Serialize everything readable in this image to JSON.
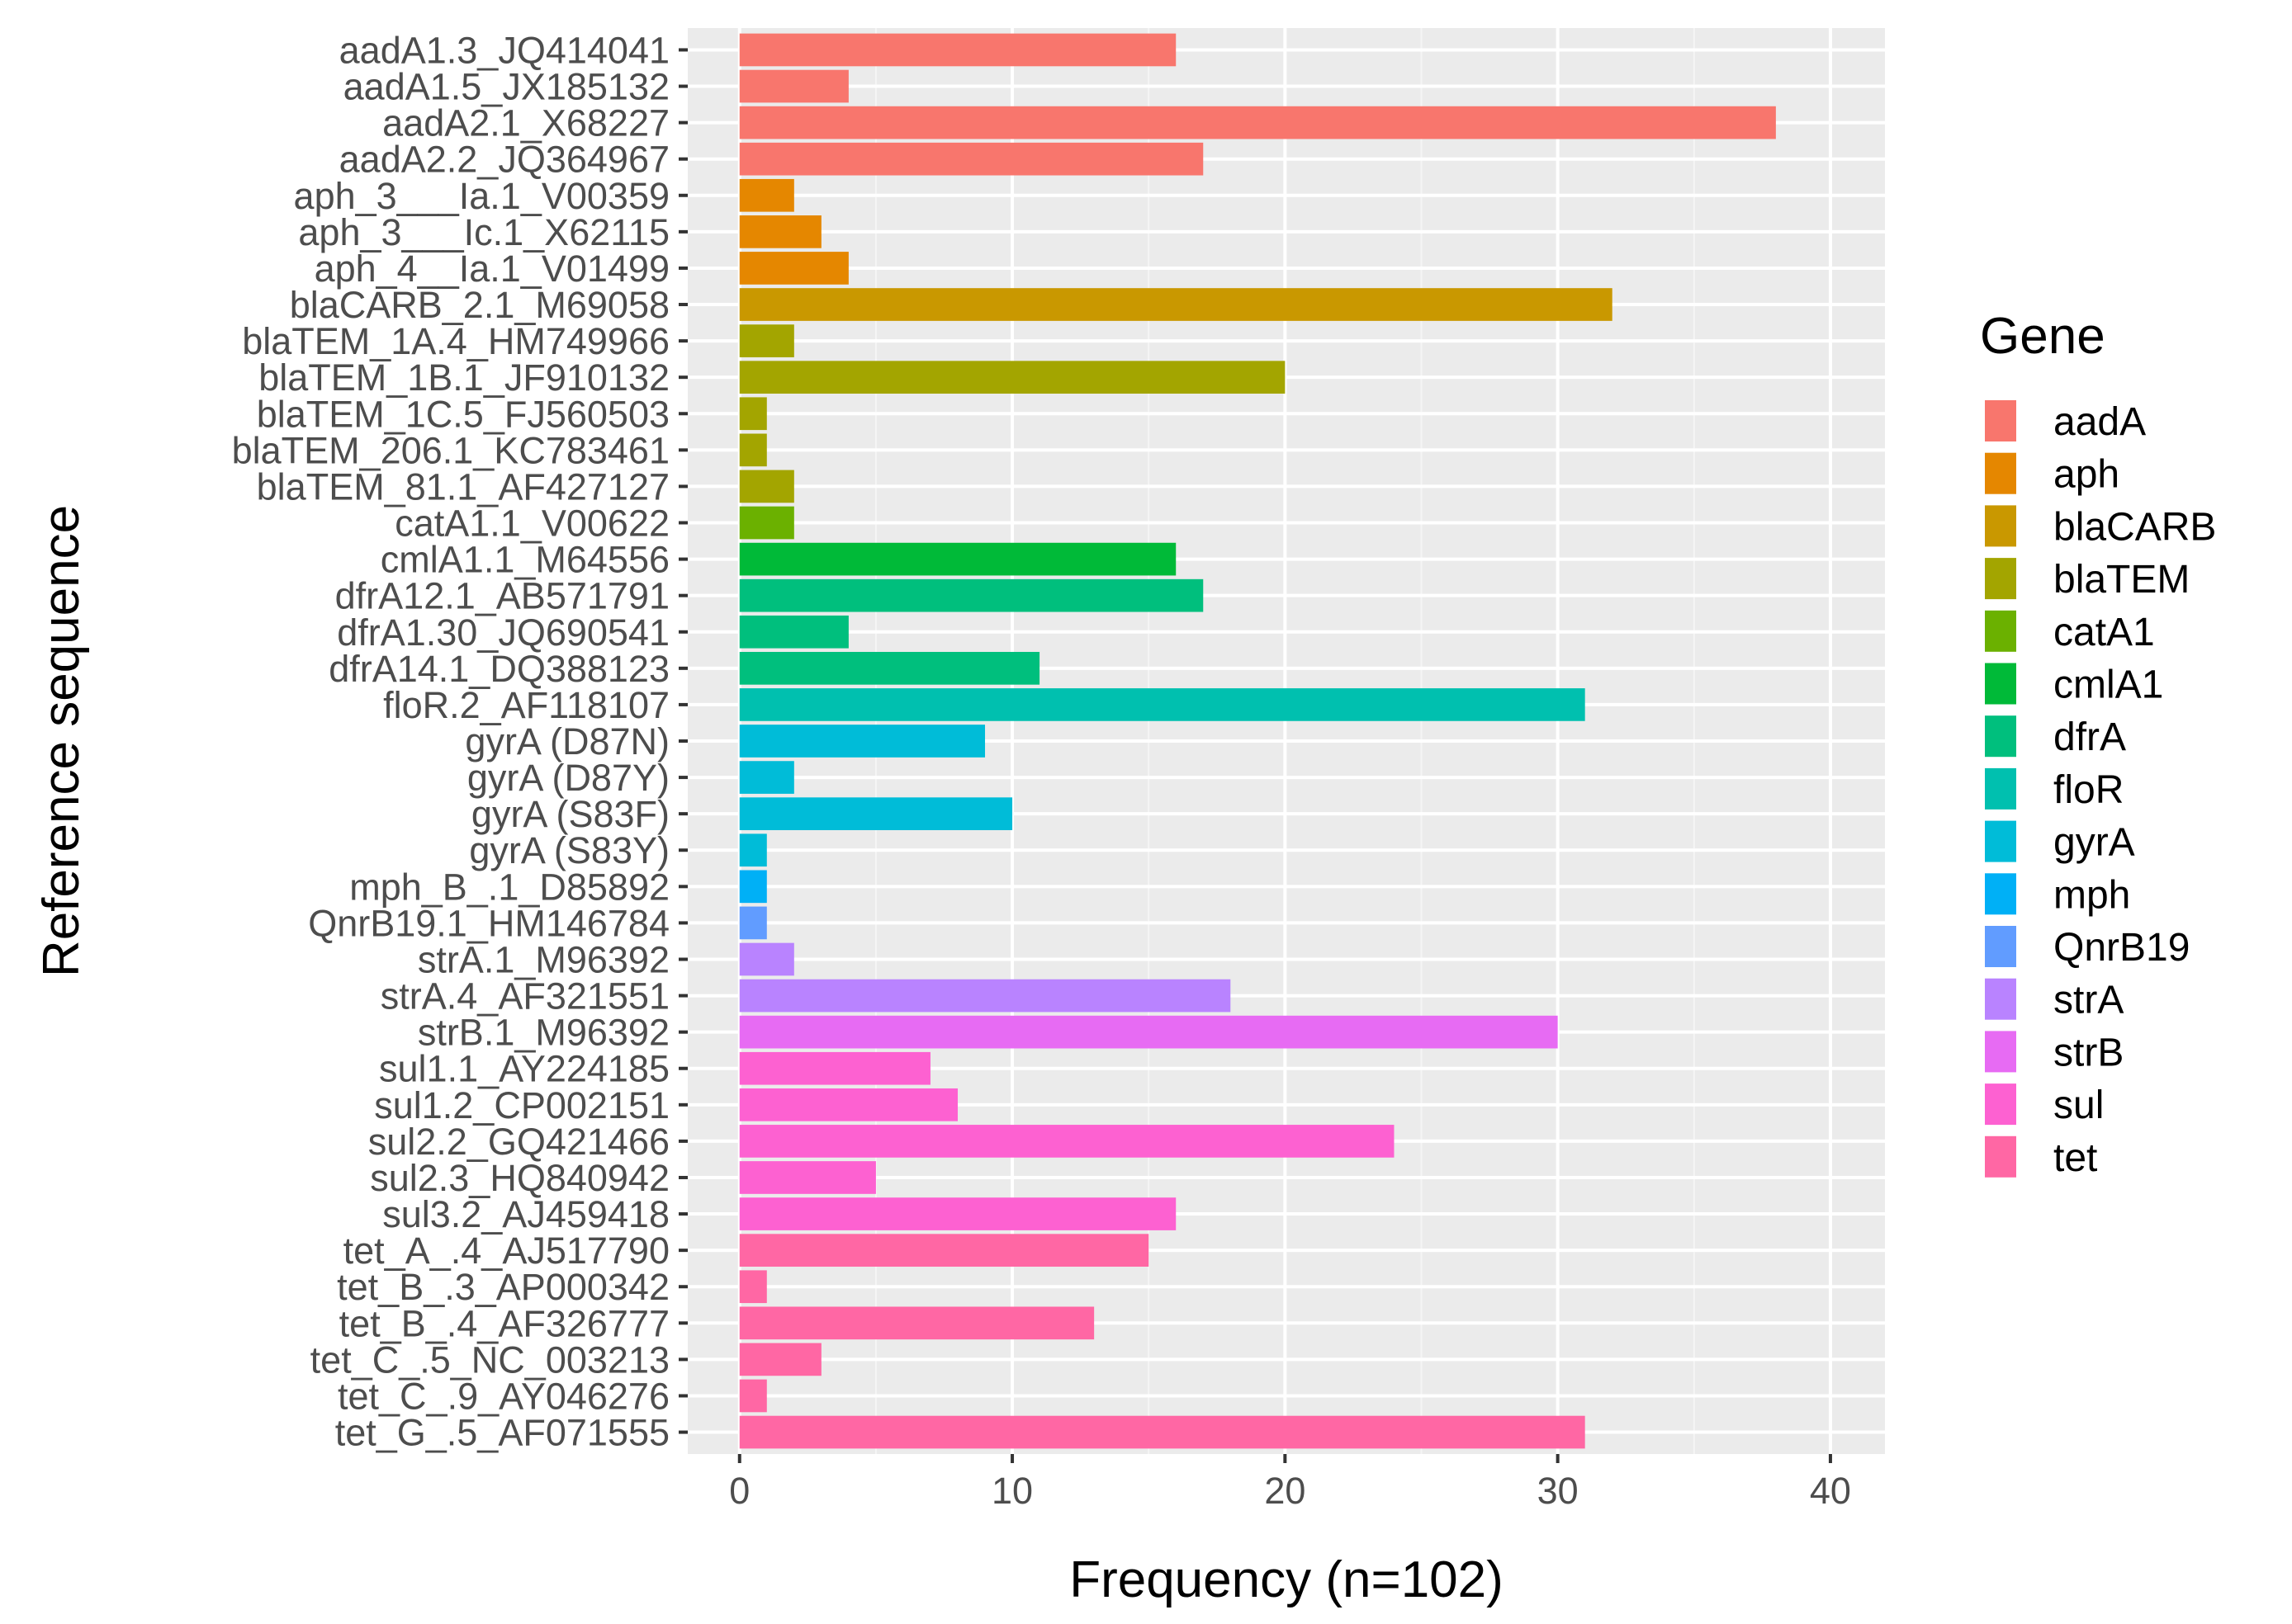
{
  "chart_data": {
    "type": "bar",
    "orientation": "horizontal",
    "title": "",
    "xlabel": "Frequency (n=102)",
    "ylabel": "Reference sequence",
    "xlim": [
      -1.9,
      42
    ],
    "xticks": [
      0,
      10,
      20,
      30,
      40
    ],
    "grid": true,
    "legend": {
      "title": "Gene",
      "position": "right",
      "items": [
        {
          "name": "aadA",
          "color": "#F8766D"
        },
        {
          "name": "aph",
          "color": "#E58700"
        },
        {
          "name": "blaCARB",
          "color": "#C99800"
        },
        {
          "name": "blaTEM",
          "color": "#A3A500"
        },
        {
          "name": "catA1",
          "color": "#6BB100"
        },
        {
          "name": "cmlA1",
          "color": "#00BA38"
        },
        {
          "name": "dfrA",
          "color": "#00BF7D"
        },
        {
          "name": "floR",
          "color": "#00C0AF"
        },
        {
          "name": "gyrA",
          "color": "#00BCD8"
        },
        {
          "name": "mph",
          "color": "#00B0F6"
        },
        {
          "name": "QnrB19",
          "color": "#619CFF"
        },
        {
          "name": "strA",
          "color": "#B983FF"
        },
        {
          "name": "strB",
          "color": "#E76BF3"
        },
        {
          "name": "sul",
          "color": "#FD61D1"
        },
        {
          "name": "tet",
          "color": "#FF67A4"
        }
      ]
    },
    "categories": [
      "aadA1.3_JQ414041",
      "aadA1.5_JX185132",
      "aadA2.1_X68227",
      "aadA2.2_JQ364967",
      "aph_3___Ia.1_V00359",
      "aph_3___Ic.1_X62115",
      "aph_4__Ia.1_V01499",
      "blaCARB_2.1_M69058",
      "blaTEM_1A.4_HM749966",
      "blaTEM_1B.1_JF910132",
      "blaTEM_1C.5_FJ560503",
      "blaTEM_206.1_KC783461",
      "blaTEM_81.1_AF427127",
      "catA1.1_V00622",
      "cmlA1.1_M64556",
      "dfrA12.1_AB571791",
      "dfrA1.30_JQ690541",
      "dfrA14.1_DQ388123",
      "floR.2_AF118107",
      "gyrA (D87N)",
      "gyrA (D87Y)",
      "gyrA (S83F)",
      "gyrA (S83Y)",
      "mph_B_.1_D85892",
      "QnrB19.1_HM146784",
      "strA.1_M96392",
      "strA.4_AF321551",
      "strB.1_M96392",
      "sul1.1_AY224185",
      "sul1.2_CP002151",
      "sul2.2_GQ421466",
      "sul2.3_HQ840942",
      "sul3.2_AJ459418",
      "tet_A_.4_AJ517790",
      "tet_B_.3_AP000342",
      "tet_B_.4_AF326777",
      "tet_C_.5_NC_003213",
      "tet_C_.9_AY046276",
      "tet_G_.5_AF071555"
    ],
    "values": [
      16,
      4,
      38,
      17,
      2,
      3,
      4,
      32,
      2,
      20,
      1,
      1,
      2,
      2,
      16,
      17,
      4,
      11,
      31,
      9,
      2,
      10,
      1,
      1,
      1,
      2,
      18,
      30,
      7,
      8,
      24,
      5,
      16,
      15,
      1,
      13,
      3,
      1,
      31
    ],
    "groups": [
      "aadA",
      "aadA",
      "aadA",
      "aadA",
      "aph",
      "aph",
      "aph",
      "blaCARB",
      "blaTEM",
      "blaTEM",
      "blaTEM",
      "blaTEM",
      "blaTEM",
      "catA1",
      "cmlA1",
      "dfrA",
      "dfrA",
      "dfrA",
      "floR",
      "gyrA",
      "gyrA",
      "gyrA",
      "gyrA",
      "mph",
      "QnrB19",
      "strA",
      "strA",
      "strB",
      "sul",
      "sul",
      "sul",
      "sul",
      "sul",
      "tet",
      "tet",
      "tet",
      "tet",
      "tet",
      "tet"
    ]
  },
  "colors": {
    "panel_background": "#EBEBEB",
    "grid_major": "#FFFFFF",
    "grid_minor": "#F5F5F5",
    "tick_text": "#4D4D4D"
  }
}
